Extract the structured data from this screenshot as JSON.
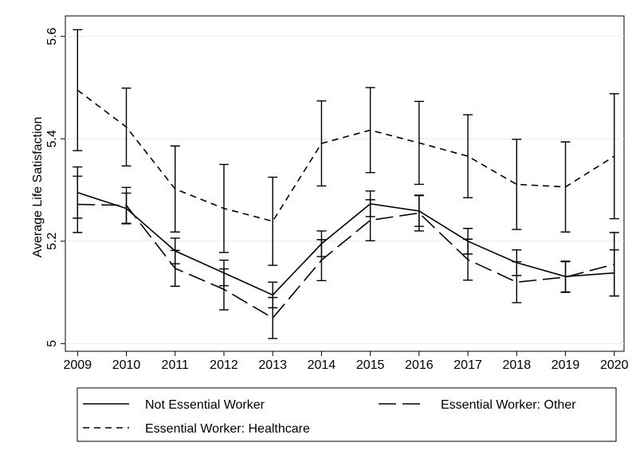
{
  "chart_data": {
    "type": "line",
    "y_label": "Average Life Satisfaction",
    "x": [
      2009,
      2010,
      2011,
      2012,
      2013,
      2014,
      2015,
      2016,
      2017,
      2018,
      2019,
      2020
    ],
    "xlim": [
      2008.75,
      2020.2
    ],
    "xticks": [
      2009,
      2010,
      2011,
      2012,
      2013,
      2014,
      2015,
      2016,
      2017,
      2018,
      2019,
      2020
    ],
    "ylim": [
      4.985,
      5.64
    ],
    "yticks": [
      5,
      5.2,
      5.4,
      5.6
    ],
    "grid": true,
    "series": [
      {
        "name": "Not Essential Worker",
        "color": "#000000",
        "dash": "none",
        "values": [
          5.295,
          5.264,
          5.181,
          5.138,
          5.095,
          5.195,
          5.273,
          5.259,
          5.2,
          5.158,
          5.131,
          5.138
        ],
        "errors": [
          0.05,
          0.03,
          0.025,
          0.025,
          0.025,
          0.025,
          0.025,
          0.03,
          0.025,
          0.025,
          0.03,
          0.045
        ]
      },
      {
        "name": "Essential Worker: Other",
        "color": "#000000",
        "dash": "22,8",
        "values": [
          5.272,
          5.27,
          5.147,
          5.106,
          5.05,
          5.163,
          5.241,
          5.255,
          5.164,
          5.12,
          5.13,
          5.155
        ],
        "errors": [
          0.055,
          0.035,
          0.035,
          0.04,
          0.04,
          0.04,
          0.04,
          0.035,
          0.04,
          0.04,
          0.03,
          0.062
        ]
      },
      {
        "name": "Essential Worker: Healthcare",
        "color": "#000000",
        "dash": "8,6",
        "values": [
          5.495,
          5.423,
          5.302,
          5.264,
          5.239,
          5.391,
          5.417,
          5.392,
          5.366,
          5.311,
          5.306,
          5.366
        ],
        "errors": [
          0.118,
          0.076,
          0.084,
          0.086,
          0.086,
          0.083,
          0.083,
          0.081,
          0.081,
          0.088,
          0.088,
          0.122
        ]
      }
    ]
  }
}
